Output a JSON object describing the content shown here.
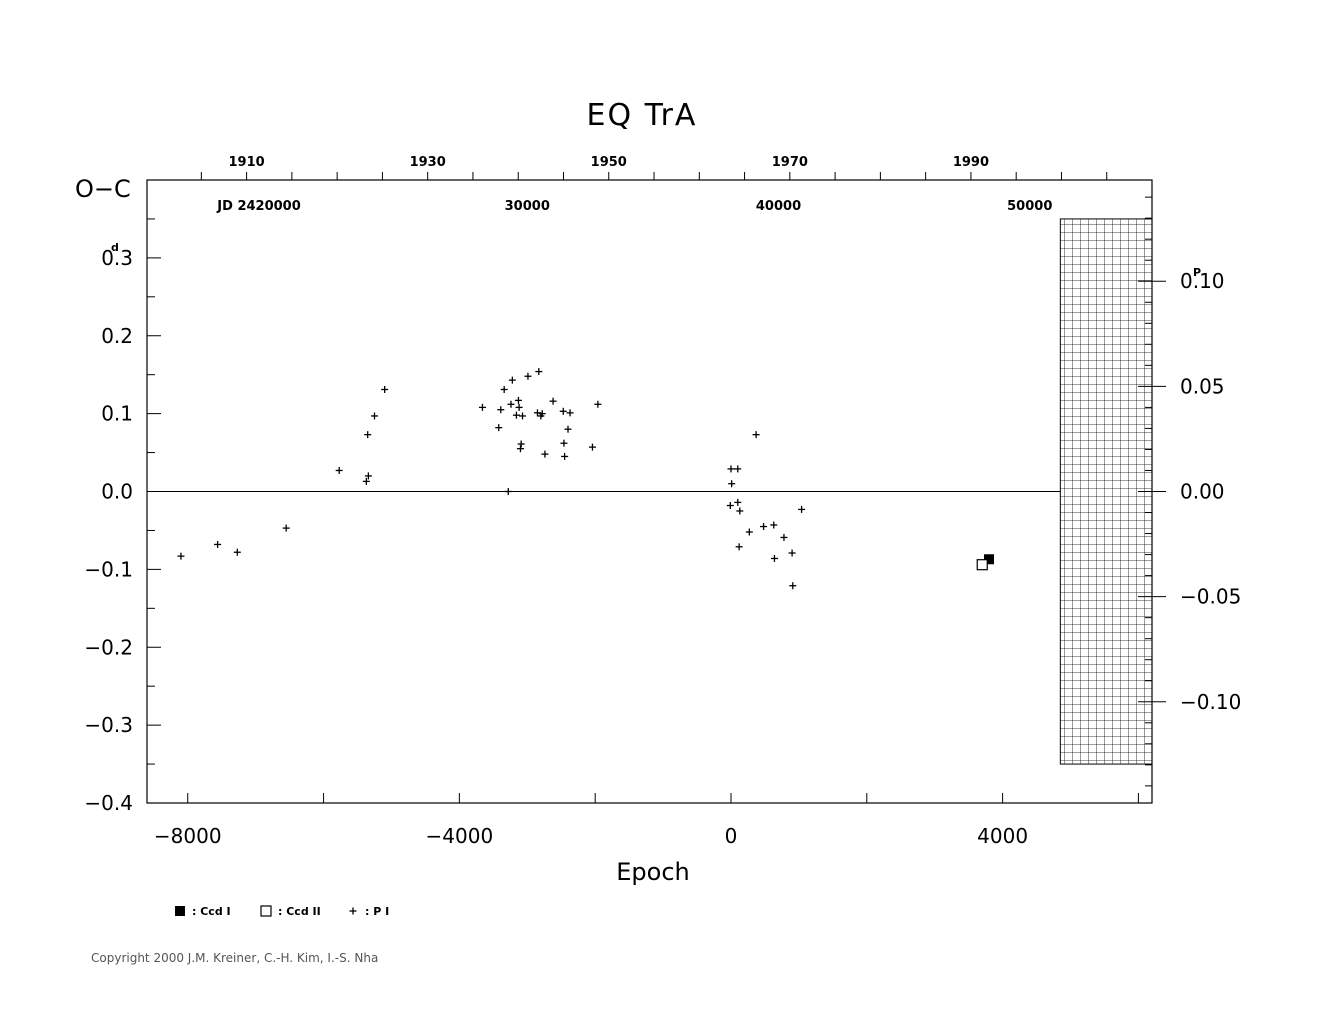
{
  "chart_data": {
    "type": "scatter",
    "title": "EQ  TrA",
    "ylabel": "O−C",
    "xlabel": "Epoch",
    "y_unit": "d",
    "y2_unit": "P",
    "xlim": [
      -8600,
      6200
    ],
    "ylim": [
      -0.4,
      0.4
    ],
    "x_ticks": [
      -8000,
      -4000,
      0,
      4000
    ],
    "x_tick_labels": [
      "−8000",
      "−4000",
      "0",
      "4000"
    ],
    "y_ticks": [
      0.3,
      0.2,
      0.1,
      0.0,
      -0.1,
      -0.2,
      -0.3,
      -0.4
    ],
    "y_tick_labels": [
      "0.3",
      "0.2",
      "0.1",
      "0.0",
      "−0.1",
      "−0.2",
      "−0.3",
      "−0.4"
    ],
    "y2_ticks": [
      0.1,
      0.05,
      0.0,
      -0.05,
      -0.1
    ],
    "y2_tick_labels": [
      "0.10",
      "0.05",
      "0.00",
      "−0.05",
      "−0.10"
    ],
    "period_days": 2.7,
    "top_year_labels": [
      {
        "year": 1910,
        "label": "1910"
      },
      {
        "year": 1930,
        "label": "1930"
      },
      {
        "year": 1950,
        "label": "1950"
      },
      {
        "year": 1970,
        "label": "1970"
      },
      {
        "year": 1990,
        "label": "1990"
      }
    ],
    "jd_labels": [
      {
        "epoch": -6950,
        "label": "JD  2420000"
      },
      {
        "epoch": -3000,
        "label": "30000"
      },
      {
        "epoch": 700,
        "label": "40000"
      },
      {
        "epoch": 4400,
        "label": "50000"
      }
    ],
    "series": [
      {
        "name": ": Ccd  I",
        "marker": "filled-square",
        "points": [
          [
            3800,
            -0.087
          ]
        ]
      },
      {
        "name": ": Ccd  II",
        "marker": "open-square",
        "points": [
          [
            3700,
            -0.094
          ]
        ]
      },
      {
        "name": ": P  I",
        "marker": "plus",
        "points": [
          [
            -8100,
            -0.083
          ],
          [
            -7560,
            -0.068
          ],
          [
            -7270,
            -0.078
          ],
          [
            -6550,
            -0.047
          ],
          [
            -5770,
            0.027
          ],
          [
            -5350,
            0.073
          ],
          [
            -5370,
            0.013
          ],
          [
            -5340,
            0.02
          ],
          [
            -5250,
            0.097
          ],
          [
            -5100,
            0.131
          ],
          [
            -3660,
            0.108
          ],
          [
            -3420,
            0.082
          ],
          [
            -3390,
            0.105
          ],
          [
            -3340,
            0.131
          ],
          [
            -3280,
            0.0
          ],
          [
            -3240,
            0.112
          ],
          [
            -3220,
            0.143
          ],
          [
            -3160,
            0.098
          ],
          [
            -3130,
            0.117
          ],
          [
            -3120,
            0.108
          ],
          [
            -3100,
            0.055
          ],
          [
            -3090,
            0.061
          ],
          [
            -3070,
            0.097
          ],
          [
            -2990,
            0.148
          ],
          [
            -2850,
            0.101
          ],
          [
            -2830,
            0.154
          ],
          [
            -2800,
            0.097
          ],
          [
            -2780,
            0.1
          ],
          [
            -2740,
            0.048
          ],
          [
            -2620,
            0.116
          ],
          [
            -2470,
            0.103
          ],
          [
            -2460,
            0.062
          ],
          [
            -2450,
            0.045
          ],
          [
            -2400,
            0.08
          ],
          [
            -2370,
            0.101
          ],
          [
            -2040,
            0.057
          ],
          [
            -1960,
            0.112
          ],
          [
            0,
            0.029
          ],
          [
            10,
            0.01
          ],
          [
            -10,
            -0.018
          ],
          [
            100,
            0.029
          ],
          [
            100,
            -0.014
          ],
          [
            130,
            -0.025
          ],
          [
            120,
            -0.071
          ],
          [
            270,
            -0.052
          ],
          [
            370,
            0.073
          ],
          [
            480,
            -0.045
          ],
          [
            630,
            -0.043
          ],
          [
            640,
            -0.086
          ],
          [
            780,
            -0.059
          ],
          [
            900,
            -0.079
          ],
          [
            910,
            -0.121
          ],
          [
            1040,
            -0.023
          ]
        ]
      }
    ],
    "copyright": "Copyright 2000 J.M. Kreiner, C.-H. Kim, I.-S. Nha"
  }
}
